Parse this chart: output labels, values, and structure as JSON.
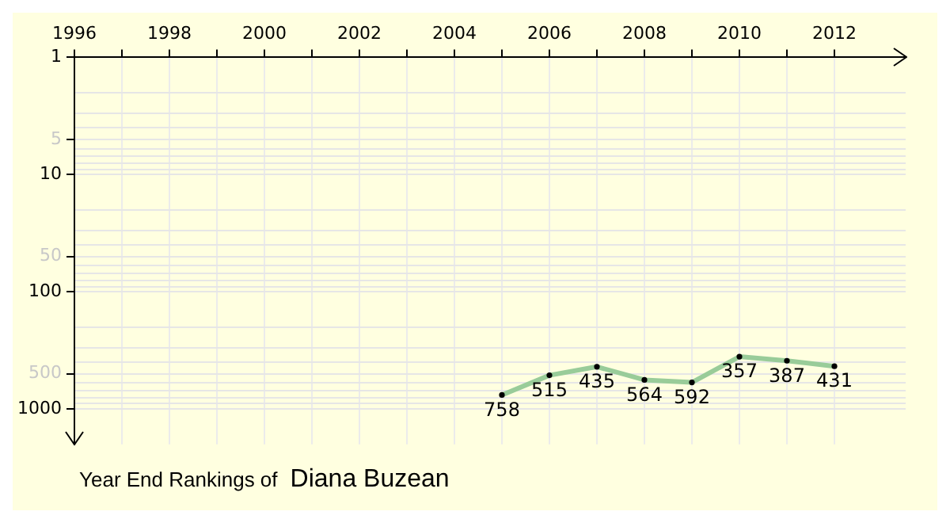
{
  "chart_data": {
    "type": "line",
    "title": "Year End Rankings of",
    "subtitle": "Diana Buzean",
    "x": [
      2005,
      2006,
      2007,
      2008,
      2009,
      2010,
      2011,
      2012
    ],
    "series": [
      {
        "color": "#99cc99",
        "values": [
          758,
          515,
          435,
          564,
          592,
          357,
          387,
          431
        ]
      }
    ],
    "data_labels": true,
    "marker": "circle",
    "log": "y",
    "grid": true,
    "xlim": [
      1996,
      2013.5
    ],
    "xticks": [
      1996,
      {
        "value": 1997,
        "label": null
      },
      1998,
      {
        "value": 1999,
        "label": null
      },
      2000,
      {
        "value": 2001,
        "label": null
      },
      2002,
      {
        "value": 2003,
        "label": null
      },
      2004,
      {
        "value": 2005,
        "label": null
      },
      2006,
      {
        "value": 2007,
        "label": null
      },
      2008,
      {
        "value": 2009,
        "label": null
      },
      2010,
      {
        "value": 2011,
        "label": null
      },
      2012
    ],
    "ylim": [
      2000,
      1
    ],
    "yticks": [
      1,
      {
        "value": 2,
        "label": null
      },
      {
        "value": 3,
        "label": null
      },
      {
        "value": 4,
        "label": null
      },
      5,
      {
        "value": 6,
        "label": null
      },
      {
        "value": 7,
        "label": null
      },
      {
        "value": 8,
        "label": null
      },
      {
        "value": 9,
        "label": null
      },
      10,
      {
        "value": 20,
        "label": null
      },
      {
        "value": 30,
        "label": null
      },
      {
        "value": 40,
        "label": null
      },
      50,
      {
        "value": 60,
        "label": null
      },
      {
        "value": 70,
        "label": null
      },
      {
        "value": 80,
        "label": null
      },
      {
        "value": 90,
        "label": null
      },
      100,
      {
        "value": 200,
        "label": null
      },
      {
        "value": 300,
        "label": null
      },
      {
        "value": 400,
        "label": null
      },
      500,
      {
        "value": 600,
        "label": null
      },
      {
        "value": 700,
        "label": null
      },
      {
        "value": 800,
        "label": null
      },
      {
        "value": 900,
        "label": null
      },
      1000
    ]
  }
}
